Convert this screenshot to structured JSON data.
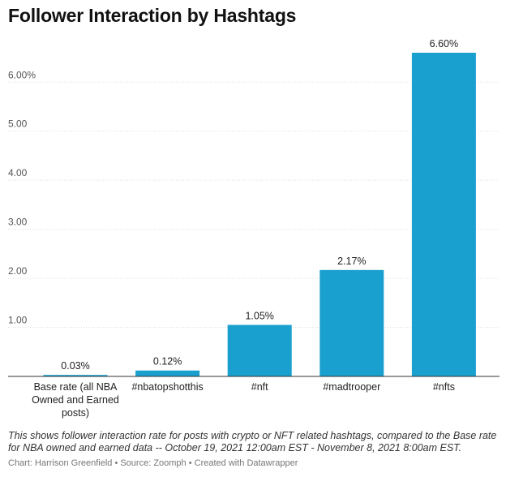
{
  "title": "Follower Interaction by Hashtags",
  "notes": "This shows follower interaction rate for posts with crypto or NFT related hashtags, compared to the Base rate for NBA owned and earned data -- October 19, 2021 12:00am EST - November 8, 2021 8:00am EST.",
  "footer": "Chart: Harrison Greenfield • Source: Zoomph • Created with Datawrapper",
  "colors": {
    "bar": "#1aa0cf"
  },
  "chart_data": {
    "type": "bar",
    "title": "Follower Interaction by Hashtags",
    "categories": [
      [
        "Base rate (all NBA",
        "Owned and Earned",
        "posts)"
      ],
      [
        "#nbatopshotthis"
      ],
      [
        "#nft"
      ],
      [
        "#madtrooper"
      ],
      [
        "#nfts"
      ]
    ],
    "values": [
      0.03,
      0.12,
      1.05,
      2.17,
      6.6
    ],
    "value_labels": [
      "0.03%",
      "0.12%",
      "1.05%",
      "2.17%",
      "6.60%"
    ],
    "ylim": [
      0,
      6.6
    ],
    "yticks": [
      1,
      2,
      3,
      4,
      5,
      6
    ],
    "ytick_labels": [
      "1.00",
      "2.00",
      "3.00",
      "4.00",
      "5.00",
      "6.00%"
    ],
    "grid": true
  }
}
